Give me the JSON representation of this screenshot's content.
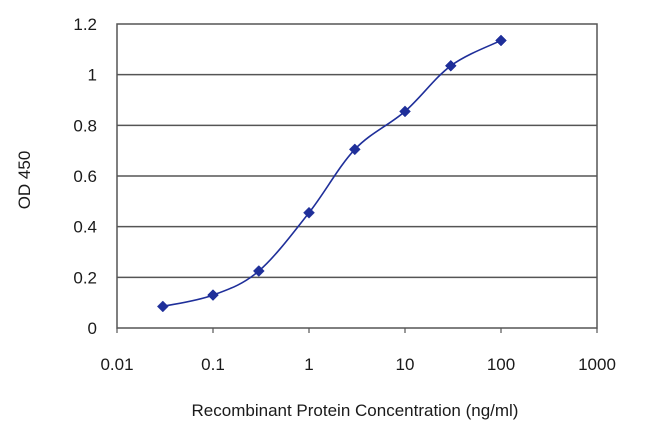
{
  "chart_data": {
    "type": "line",
    "xlabel": "Recombinant Protein Concentration (ng/ml)",
    "ylabel": "OD 450",
    "x_scale": "log",
    "xlim": [
      0.01,
      1000
    ],
    "ylim": [
      0,
      1.2
    ],
    "x_ticks": [
      "0.01",
      "0.1",
      "1",
      "10",
      "100",
      "1000"
    ],
    "y_ticks": [
      "0",
      "0.2",
      "0.4",
      "0.6",
      "0.8",
      "1",
      "1.2"
    ],
    "grid": "horizontal",
    "series": [
      {
        "color": "#1f2f9a",
        "marker": "diamond",
        "x": [
          0.03,
          0.1,
          0.3,
          1,
          3,
          10,
          30,
          100
        ],
        "y": [
          0.085,
          0.13,
          0.225,
          0.455,
          0.705,
          0.855,
          1.035,
          1.135
        ]
      }
    ]
  }
}
